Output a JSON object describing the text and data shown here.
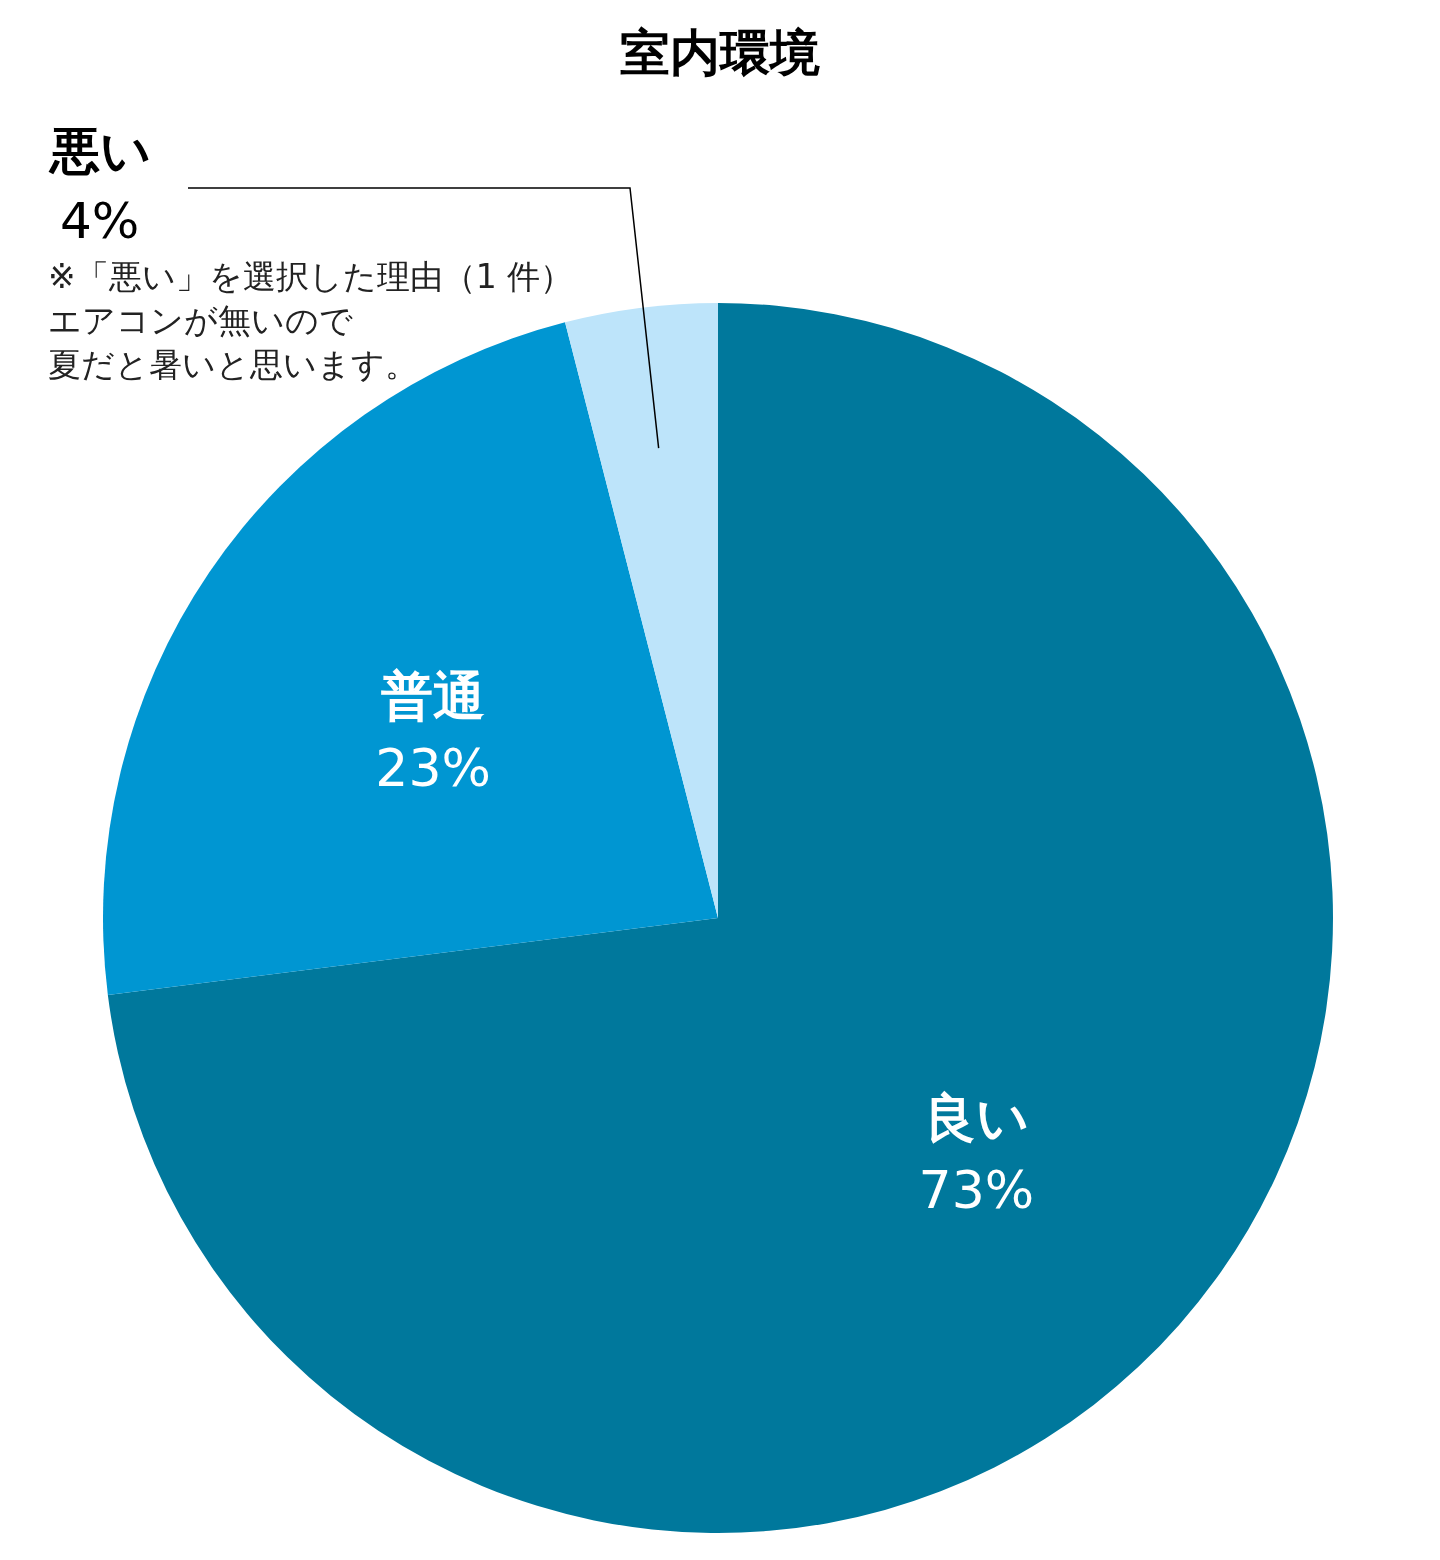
{
  "chart_data": {
    "type": "pie",
    "title": "室内環境",
    "categories": [
      "良い",
      "普通",
      "悪い"
    ],
    "values": [
      73,
      23,
      4
    ],
    "value_labels": [
      "73%",
      "23%",
      "4%"
    ],
    "colors": [
      "#00789c",
      "#0096d2",
      "#bde4fa"
    ],
    "annotations": [
      "※「悪い」を選択した理由（1 件）",
      "エアコンが無いので",
      "夏だと暑いと思います。"
    ],
    "legend": false
  }
}
